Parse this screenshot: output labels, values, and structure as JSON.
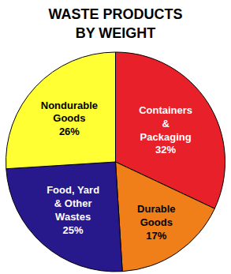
{
  "chart_data": {
    "type": "pie",
    "title": "WASTE PRODUCTS BY WEIGHT",
    "categories": [
      "Containers & Packaging",
      "Durable Goods",
      "Food, Yard & Other Wastes",
      "Nondurable Goods"
    ],
    "values": [
      32,
      17,
      25,
      26
    ],
    "value_labels": [
      "32%",
      "17%",
      "25%",
      "26%"
    ],
    "colors": [
      "#e8202a",
      "#f07f1a",
      "#27188c",
      "#ffff33"
    ],
    "data_labels": true
  }
}
